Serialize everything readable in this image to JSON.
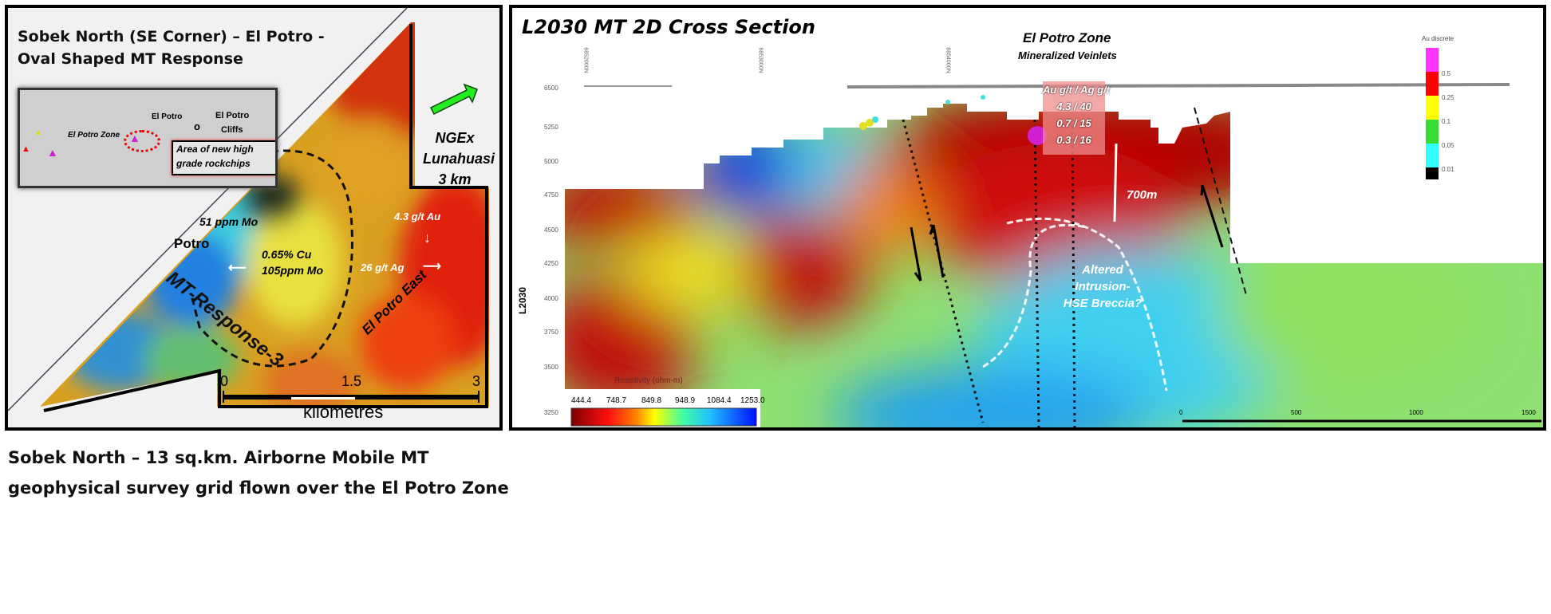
{
  "left_panel": {
    "title_line1": "Sobek North (SE Corner) – El Potro -",
    "title_line2": "Oval Shaped MT Response",
    "inset": {
      "labels": [
        "El Potro",
        "El Potro",
        "Cliffs",
        "El Potro Zone"
      ],
      "callout_line1": "Area of new high",
      "callout_line2": "grade rockchips"
    },
    "arrow_label_line1": "NGEx",
    "arrow_label_line2": "Lunahuasi",
    "arrow_label_line3": "3 km",
    "annotations": {
      "mo51": "51 ppm Mo",
      "potro": "Potro",
      "cu": "0.65% Cu",
      "mo105": "105ppm Mo",
      "au": "4.3 g/t Au",
      "ag": "26 g/t Ag",
      "east": "El Potro East",
      "response": "MT-Response-3"
    },
    "scale": {
      "ticks": [
        "0",
        "1.5",
        "3"
      ],
      "unit": "kilometres"
    }
  },
  "caption_line1": "Sobek North – 13 sq.km. Airborne Mobile MT",
  "caption_line2": "geophysical survey grid flown over the El Potro Zone",
  "right_panel": {
    "title": "L2030 MT 2D Cross Section",
    "zone_title": "El Potro Zone",
    "zone_subtitle": "Mineralized Veinlets",
    "assay_header": "Au g/t / Ag g/t",
    "assays": [
      "4.3 / 40",
      "0.7 / 15",
      "0.3 / 16"
    ],
    "depth_label": "700m",
    "intrusion_line1": "Altered",
    "intrusion_line2": "Intrusion-",
    "intrusion_line3": "HSE Breccia?",
    "axis_label": "L2030",
    "elevation_ticks": [
      "6500",
      "5250",
      "5000",
      "4750",
      "4500",
      "4250",
      "4000",
      "3750",
      "3500",
      "3250"
    ],
    "top_ticks": [
      "6852000N",
      "6853000N",
      "6854000N"
    ],
    "scale_ticks": [
      "0",
      "500",
      "1000",
      "1500"
    ],
    "legend": {
      "title": "Resistivity (ohm-m)",
      "values": [
        "444.4",
        "748.7",
        "849.8",
        "948.9",
        "1084.4",
        "1253.0"
      ]
    },
    "au_legend": {
      "title": "Au discrete",
      "values": [
        "0.5",
        "0.25",
        "0.1",
        "0.05",
        "0.01"
      ],
      "colors": [
        "#ff33ff",
        "#ff0000",
        "#ffff00",
        "#33dd33",
        "#33ffff",
        "#000000"
      ]
    }
  }
}
